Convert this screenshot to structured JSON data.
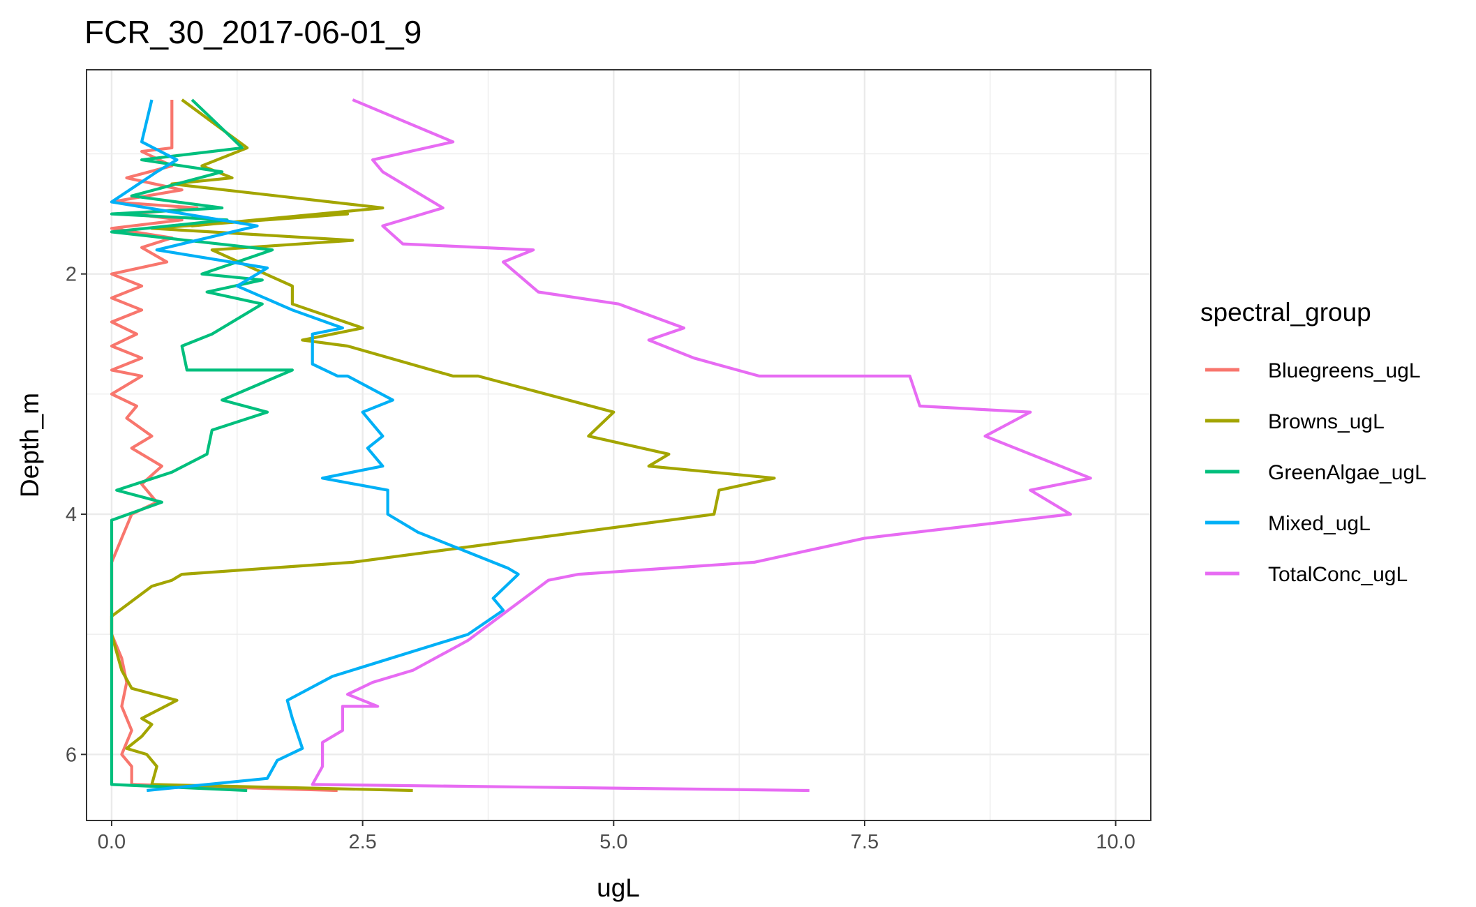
{
  "chart_data": {
    "type": "line",
    "title": "FCR_30_2017-06-01_9",
    "xlabel": "ugL",
    "ylabel": "Depth_m",
    "xlim": [
      -0.25,
      10.35
    ],
    "ylim": [
      6.55,
      0.3
    ],
    "y_reversed": true,
    "x_ticks": [
      0,
      2.5,
      5,
      7.5,
      10
    ],
    "x_tick_labels": [
      "0.0",
      "2.5",
      "5.0",
      "7.5",
      "10.0"
    ],
    "y_ticks": [
      2,
      4,
      6
    ],
    "y_tick_labels": [
      "2",
      "4",
      "6"
    ],
    "grid": true,
    "legend": {
      "title": "spectral_group",
      "position": "right",
      "entries": [
        "Bluegreens_ugL",
        "Browns_ugL",
        "GreenAlgae_ugL",
        "Mixed_ugL",
        "TotalConc_ugL"
      ]
    },
    "series": [
      {
        "name": "Bluegreens_ugL",
        "color": "#F8766D",
        "points": [
          [
            0.6,
            0.55
          ],
          [
            0.6,
            0.95
          ],
          [
            0.3,
            0.98
          ],
          [
            0.6,
            1.1
          ],
          [
            0.15,
            1.2
          ],
          [
            0.7,
            1.3
          ],
          [
            0.0,
            1.4
          ],
          [
            0.85,
            1.45
          ],
          [
            0.2,
            1.5
          ],
          [
            0.7,
            1.55
          ],
          [
            0.0,
            1.62
          ],
          [
            0.6,
            1.7
          ],
          [
            0.3,
            1.78
          ],
          [
            0.55,
            1.9
          ],
          [
            0.0,
            2.0
          ],
          [
            0.3,
            2.1
          ],
          [
            0.0,
            2.2
          ],
          [
            0.3,
            2.3
          ],
          [
            0.0,
            2.4
          ],
          [
            0.25,
            2.5
          ],
          [
            0.0,
            2.6
          ],
          [
            0.3,
            2.7
          ],
          [
            0.0,
            2.8
          ],
          [
            0.3,
            2.85
          ],
          [
            0.0,
            3.0
          ],
          [
            0.25,
            3.1
          ],
          [
            0.15,
            3.2
          ],
          [
            0.4,
            3.35
          ],
          [
            0.2,
            3.45
          ],
          [
            0.5,
            3.6
          ],
          [
            0.3,
            3.75
          ],
          [
            0.45,
            3.9
          ],
          [
            0.2,
            4.0
          ],
          [
            0.0,
            4.4
          ],
          [
            0.0,
            5.0
          ],
          [
            0.1,
            5.2
          ],
          [
            0.15,
            5.4
          ],
          [
            0.1,
            5.6
          ],
          [
            0.2,
            5.8
          ],
          [
            0.1,
            6.0
          ],
          [
            0.2,
            6.1
          ],
          [
            0.2,
            6.25
          ],
          [
            2.25,
            6.3
          ]
        ]
      },
      {
        "name": "Browns_ugL",
        "color": "#A3A500",
        "points": [
          [
            0.7,
            0.55
          ],
          [
            1.35,
            0.95
          ],
          [
            0.9,
            1.1
          ],
          [
            1.2,
            1.2
          ],
          [
            0.6,
            1.25
          ],
          [
            2.7,
            1.45
          ],
          [
            0.8,
            1.6
          ],
          [
            1.0,
            1.58
          ],
          [
            2.35,
            1.5
          ],
          [
            0.4,
            1.62
          ],
          [
            2.4,
            1.72
          ],
          [
            1.0,
            1.8
          ],
          [
            1.4,
            1.95
          ],
          [
            1.8,
            2.1
          ],
          [
            1.8,
            2.25
          ],
          [
            2.5,
            2.45
          ],
          [
            1.9,
            2.55
          ],
          [
            2.35,
            2.6
          ],
          [
            3.4,
            2.85
          ],
          [
            3.65,
            2.85
          ],
          [
            5.0,
            3.15
          ],
          [
            4.75,
            3.35
          ],
          [
            5.55,
            3.5
          ],
          [
            5.35,
            3.6
          ],
          [
            6.6,
            3.7
          ],
          [
            6.05,
            3.8
          ],
          [
            6.0,
            4.0
          ],
          [
            2.4,
            4.4
          ],
          [
            0.7,
            4.5
          ],
          [
            0.6,
            4.55
          ],
          [
            0.4,
            4.6
          ],
          [
            0.0,
            4.85
          ],
          [
            0.0,
            5.0
          ],
          [
            0.05,
            5.15
          ],
          [
            0.1,
            5.3
          ],
          [
            0.2,
            5.45
          ],
          [
            0.65,
            5.55
          ],
          [
            0.3,
            5.7
          ],
          [
            0.4,
            5.75
          ],
          [
            0.3,
            5.85
          ],
          [
            0.15,
            5.95
          ],
          [
            0.35,
            6.0
          ],
          [
            0.45,
            6.1
          ],
          [
            0.4,
            6.25
          ],
          [
            3.0,
            6.3
          ]
        ]
      },
      {
        "name": "GreenAlgae_ugL",
        "color": "#00BF7D",
        "points": [
          [
            0.8,
            0.55
          ],
          [
            1.3,
            0.95
          ],
          [
            0.3,
            1.05
          ],
          [
            1.1,
            1.15
          ],
          [
            0.2,
            1.35
          ],
          [
            1.1,
            1.45
          ],
          [
            0.0,
            1.5
          ],
          [
            1.15,
            1.55
          ],
          [
            0.0,
            1.65
          ],
          [
            1.6,
            1.8
          ],
          [
            0.9,
            2.0
          ],
          [
            1.5,
            2.05
          ],
          [
            0.95,
            2.15
          ],
          [
            1.5,
            2.25
          ],
          [
            1.0,
            2.5
          ],
          [
            0.7,
            2.6
          ],
          [
            0.75,
            2.8
          ],
          [
            1.8,
            2.8
          ],
          [
            1.1,
            3.05
          ],
          [
            1.55,
            3.15
          ],
          [
            1.0,
            3.3
          ],
          [
            0.95,
            3.5
          ],
          [
            0.6,
            3.65
          ],
          [
            0.05,
            3.8
          ],
          [
            0.5,
            3.9
          ],
          [
            0.0,
            4.05
          ],
          [
            0.0,
            6.25
          ],
          [
            1.35,
            6.3
          ]
        ]
      },
      {
        "name": "Mixed_ugL",
        "color": "#00B0F6",
        "points": [
          [
            0.4,
            0.55
          ],
          [
            0.3,
            0.9
          ],
          [
            0.65,
            1.05
          ],
          [
            0.45,
            1.15
          ],
          [
            0.0,
            1.4
          ],
          [
            1.45,
            1.6
          ],
          [
            0.45,
            1.8
          ],
          [
            1.55,
            1.95
          ],
          [
            1.25,
            2.1
          ],
          [
            1.8,
            2.3
          ],
          [
            2.3,
            2.45
          ],
          [
            2.0,
            2.5
          ],
          [
            2.0,
            2.75
          ],
          [
            2.25,
            2.85
          ],
          [
            2.35,
            2.85
          ],
          [
            2.8,
            3.05
          ],
          [
            2.5,
            3.15
          ],
          [
            2.7,
            3.35
          ],
          [
            2.55,
            3.45
          ],
          [
            2.7,
            3.6
          ],
          [
            2.1,
            3.7
          ],
          [
            2.75,
            3.8
          ],
          [
            2.75,
            4.0
          ],
          [
            3.05,
            4.15
          ],
          [
            3.95,
            4.45
          ],
          [
            4.05,
            4.5
          ],
          [
            3.8,
            4.7
          ],
          [
            3.9,
            4.8
          ],
          [
            3.55,
            5.0
          ],
          [
            2.2,
            5.35
          ],
          [
            1.75,
            5.55
          ],
          [
            1.8,
            5.7
          ],
          [
            1.9,
            5.95
          ],
          [
            1.65,
            6.05
          ],
          [
            1.55,
            6.2
          ],
          [
            0.35,
            6.3
          ]
        ]
      },
      {
        "name": "TotalConc_ugL",
        "color": "#E76BF3",
        "points": [
          [
            2.4,
            0.55
          ],
          [
            3.4,
            0.9
          ],
          [
            2.6,
            1.05
          ],
          [
            2.7,
            1.15
          ],
          [
            3.0,
            1.3
          ],
          [
            3.3,
            1.45
          ],
          [
            2.7,
            1.6
          ],
          [
            2.9,
            1.75
          ],
          [
            4.2,
            1.8
          ],
          [
            3.9,
            1.9
          ],
          [
            4.25,
            2.15
          ],
          [
            5.05,
            2.25
          ],
          [
            5.7,
            2.45
          ],
          [
            5.35,
            2.55
          ],
          [
            5.8,
            2.7
          ],
          [
            6.45,
            2.85
          ],
          [
            7.95,
            2.85
          ],
          [
            8.05,
            3.1
          ],
          [
            9.15,
            3.15
          ],
          [
            8.7,
            3.35
          ],
          [
            9.75,
            3.7
          ],
          [
            9.15,
            3.8
          ],
          [
            9.55,
            4.0
          ],
          [
            7.5,
            4.2
          ],
          [
            6.4,
            4.4
          ],
          [
            4.65,
            4.5
          ],
          [
            4.35,
            4.55
          ],
          [
            3.95,
            4.8
          ],
          [
            3.55,
            5.05
          ],
          [
            3.0,
            5.3
          ],
          [
            2.6,
            5.4
          ],
          [
            2.35,
            5.5
          ],
          [
            2.65,
            5.6
          ],
          [
            2.3,
            5.6
          ],
          [
            2.3,
            5.8
          ],
          [
            2.1,
            5.9
          ],
          [
            2.1,
            6.1
          ],
          [
            2.0,
            6.25
          ],
          [
            6.95,
            6.3
          ]
        ]
      }
    ]
  }
}
